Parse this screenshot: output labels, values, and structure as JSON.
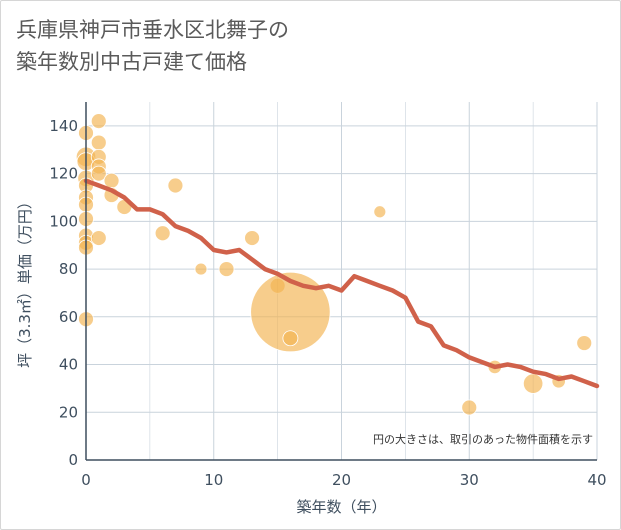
{
  "title_line1": "兵庫県神戸市垂水区北舞子の",
  "title_line2": "築年数別中古戸建て価格",
  "chart_data": {
    "type": "scatter",
    "xlabel": "築年数（年）",
    "ylabel": "坪（3.3㎡）単価（万円）",
    "xlim": [
      0,
      40
    ],
    "ylim": [
      0,
      150
    ],
    "x_ticks": [
      "0",
      "10",
      "20",
      "30",
      "40"
    ],
    "y_ticks": [
      "0",
      "20",
      "40",
      "60",
      "80",
      "100",
      "120",
      "140"
    ],
    "note": "円の大きさは、取引のあった物件面積を示す",
    "grid": true,
    "colors": {
      "bubble": "#f3b24f",
      "line": "#d0614a",
      "grid": "#c9d3dc",
      "axis": "#3f4f5f"
    },
    "series": [
      {
        "type": "scatter",
        "points": [
          {
            "x": 0,
            "y": 137,
            "size": 1.0
          },
          {
            "x": 0,
            "y": 127,
            "size": 1.3
          },
          {
            "x": 0,
            "y": 125,
            "size": 1.2
          },
          {
            "x": 0,
            "y": 118,
            "size": 1.1
          },
          {
            "x": 0,
            "y": 115,
            "size": 1.0
          },
          {
            "x": 0,
            "y": 110,
            "size": 1.0
          },
          {
            "x": 0,
            "y": 107,
            "size": 1.0
          },
          {
            "x": 0,
            "y": 101,
            "size": 1.0
          },
          {
            "x": 0,
            "y": 94,
            "size": 1.0
          },
          {
            "x": 0,
            "y": 91,
            "size": 1.0
          },
          {
            "x": 0,
            "y": 89,
            "size": 1.0
          },
          {
            "x": 0,
            "y": 59,
            "size": 1.0
          },
          {
            "x": 1,
            "y": 142,
            "size": 1.0
          },
          {
            "x": 1,
            "y": 133,
            "size": 1.0
          },
          {
            "x": 1,
            "y": 127,
            "size": 1.0
          },
          {
            "x": 1,
            "y": 123,
            "size": 1.0
          },
          {
            "x": 1,
            "y": 120,
            "size": 1.0
          },
          {
            "x": 1,
            "y": 93,
            "size": 1.0
          },
          {
            "x": 2,
            "y": 117,
            "size": 1.0
          },
          {
            "x": 2,
            "y": 111,
            "size": 1.0
          },
          {
            "x": 3,
            "y": 106,
            "size": 1.0
          },
          {
            "x": 6,
            "y": 95,
            "size": 1.0
          },
          {
            "x": 7,
            "y": 115,
            "size": 1.0
          },
          {
            "x": 9,
            "y": 80,
            "size": 0.8
          },
          {
            "x": 11,
            "y": 80,
            "size": 1.0
          },
          {
            "x": 13,
            "y": 93,
            "size": 1.0
          },
          {
            "x": 15,
            "y": 73,
            "size": 1.0
          },
          {
            "x": 16,
            "y": 62,
            "size": 5.3
          },
          {
            "x": 16,
            "y": 51,
            "size": 1.0
          },
          {
            "x": 23,
            "y": 104,
            "size": 0.8
          },
          {
            "x": 30,
            "y": 22,
            "size": 1.0
          },
          {
            "x": 32,
            "y": 39,
            "size": 0.9
          },
          {
            "x": 35,
            "y": 32,
            "size": 1.3
          },
          {
            "x": 37,
            "y": 33,
            "size": 0.9
          },
          {
            "x": 39,
            "y": 49,
            "size": 1.0
          }
        ]
      },
      {
        "type": "line",
        "x": [
          0,
          1,
          2,
          3,
          4,
          5,
          6,
          7,
          8,
          9,
          10,
          11,
          12,
          13,
          14,
          15,
          16,
          17,
          18,
          19,
          20,
          21,
          22,
          23,
          24,
          25,
          26,
          27,
          28,
          29,
          30,
          31,
          32,
          33,
          34,
          35,
          36,
          37,
          38,
          39,
          40
        ],
        "values": [
          117,
          115,
          113,
          110,
          105,
          105,
          103,
          98,
          96,
          93,
          88,
          87,
          88,
          84,
          80,
          78,
          75,
          73,
          72,
          73,
          71,
          77,
          75,
          73,
          71,
          68,
          58,
          56,
          48,
          46,
          43,
          41,
          39,
          40,
          39,
          37,
          36,
          34,
          35,
          33,
          31
        ]
      }
    ]
  }
}
